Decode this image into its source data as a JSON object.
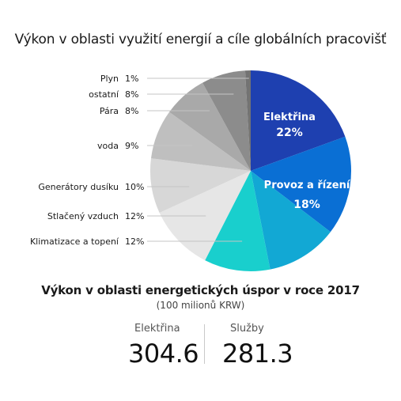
{
  "chart_data": {
    "type": "pie",
    "title": "Výkon v oblasti využití energií a cíle globálních pracovišť",
    "slices": [
      {
        "label": "Elektřina",
        "value_label": "22%",
        "value": 22,
        "color": "#1e40b0"
      },
      {
        "label": "Provoz a řízení",
        "value_label": "18%",
        "value": 18,
        "color": "#0a6fd4"
      },
      {
        "label": "",
        "value_label": "",
        "value": 13,
        "color": "#12a8d4"
      },
      {
        "label": "Klimatizace a topení",
        "value_label": "12%",
        "value": 12,
        "color": "#19cfcd"
      },
      {
        "label": "Stlačený vzduch",
        "value_label": "12%",
        "value": 12,
        "color": "#e6e6e6"
      },
      {
        "label": "Generátory dusíku",
        "value_label": "10%",
        "value": 10,
        "color": "#d7d7d7"
      },
      {
        "label": "voda",
        "value_label": "9%",
        "value": 9,
        "color": "#bfbfbf"
      },
      {
        "label": "Pára",
        "value_label": "8%",
        "value": 8,
        "color": "#a9a9a9"
      },
      {
        "label": "ostatní",
        "value_label": "8%",
        "value": 8,
        "color": "#8c8c8c"
      },
      {
        "label": "Plyn",
        "value_label": "1%",
        "value": 1,
        "color": "#737373"
      }
    ]
  },
  "savings": {
    "title": "Výkon v oblasti energetických úspor v roce 2017",
    "unit": "(100 milionů KRW)",
    "items": [
      {
        "label": "Elektřina",
        "value": "304.6"
      },
      {
        "label": "Služby",
        "value": "281.3"
      }
    ]
  },
  "colors": {
    "leader_line": "#c4c4c4",
    "inner_text": "#ffffff",
    "divider": "#c9c9c9"
  }
}
